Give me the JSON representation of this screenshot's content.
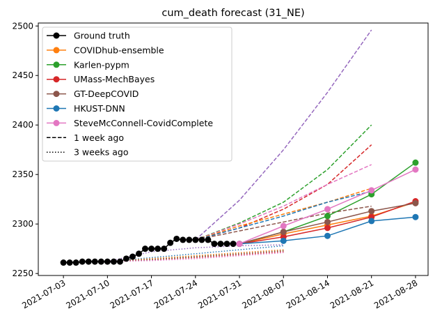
{
  "chart_data": {
    "type": "line",
    "title": "cum_death forecast (31_NE)",
    "xlabel": "",
    "ylabel": "",
    "xlim": [
      "2021-06-29",
      "2021-08-30"
    ],
    "ylim": [
      2248,
      2503
    ],
    "x_ticks": [
      "2021-07-03",
      "2021-07-10",
      "2021-07-17",
      "2021-07-24",
      "2021-07-31",
      "2021-08-07",
      "2021-08-14",
      "2021-08-21",
      "2021-08-28"
    ],
    "y_ticks": [
      2250,
      2300,
      2350,
      2400,
      2450,
      2500
    ],
    "grid": false,
    "legend_position": "top-left",
    "legend": [
      {
        "label": "Ground truth",
        "color": "#000000",
        "style": "solid-marker"
      },
      {
        "label": "COVIDhub-ensemble",
        "color": "#ff7f0e",
        "style": "solid-marker"
      },
      {
        "label": "Karlen-pypm",
        "color": "#2ca02c",
        "style": "solid-marker"
      },
      {
        "label": "UMass-MechBayes",
        "color": "#d62728",
        "style": "solid-marker"
      },
      {
        "label": "GT-DeepCOVID",
        "color": "#8c564b",
        "style": "solid-marker"
      },
      {
        "label": "HKUST-DNN",
        "color": "#1f77b4",
        "style": "solid-marker"
      },
      {
        "label": "SteveMcConnell-CovidComplete",
        "color": "#e377c2",
        "style": "solid-marker"
      },
      {
        "label": "1 week ago",
        "color": "#000000",
        "style": "dashed"
      },
      {
        "label": "3 weeks ago",
        "color": "#000000",
        "style": "dotted"
      }
    ],
    "ground_truth": {
      "name": "Ground truth",
      "color": "#000000",
      "x": [
        "2021-07-03",
        "2021-07-04",
        "2021-07-05",
        "2021-07-06",
        "2021-07-07",
        "2021-07-08",
        "2021-07-09",
        "2021-07-10",
        "2021-07-11",
        "2021-07-12",
        "2021-07-13",
        "2021-07-14",
        "2021-07-15",
        "2021-07-16",
        "2021-07-17",
        "2021-07-18",
        "2021-07-19",
        "2021-07-20",
        "2021-07-21",
        "2021-07-22",
        "2021-07-23",
        "2021-07-24",
        "2021-07-25",
        "2021-07-26",
        "2021-07-27",
        "2021-07-28",
        "2021-07-29",
        "2021-07-30"
      ],
      "y": [
        2261,
        2261,
        2261,
        2262,
        2262,
        2262,
        2262,
        2262,
        2262,
        2262,
        2265,
        2267,
        2270,
        2275,
        2275,
        2275,
        2275,
        2281,
        2285,
        2284,
        2284,
        2284,
        2284,
        2284,
        2280,
        2280,
        2280,
        2280
      ]
    },
    "series": [
      {
        "name": "COVIDhub-ensemble",
        "color": "#ff7f0e",
        "x": [
          "2021-07-31",
          "2021-08-07",
          "2021-08-14",
          "2021-08-21",
          "2021-08-28"
        ],
        "y": [
          2280,
          2290,
          2299,
          2308,
          2322
        ]
      },
      {
        "name": "Karlen-pypm",
        "color": "#2ca02c",
        "x": [
          "2021-07-31",
          "2021-08-07",
          "2021-08-14",
          "2021-08-21",
          "2021-08-28"
        ],
        "y": [
          2280,
          2292,
          2308,
          2330,
          2362
        ]
      },
      {
        "name": "UMass-MechBayes",
        "color": "#d62728",
        "x": [
          "2021-07-31",
          "2021-08-07",
          "2021-08-14",
          "2021-08-21",
          "2021-08-28"
        ],
        "y": [
          2280,
          2287,
          2296,
          2307,
          2323
        ]
      },
      {
        "name": "GT-DeepCOVID",
        "color": "#8c564b",
        "x": [
          "2021-07-31",
          "2021-08-07",
          "2021-08-14",
          "2021-08-21",
          "2021-08-28"
        ],
        "y": [
          2280,
          2292,
          2302,
          2313,
          2321
        ]
      },
      {
        "name": "HKUST-DNN",
        "color": "#1f77b4",
        "x": [
          "2021-07-31",
          "2021-08-07",
          "2021-08-14",
          "2021-08-21",
          "2021-08-28"
        ],
        "y": [
          2280,
          2283,
          2288,
          2303,
          2307
        ]
      },
      {
        "name": "SteveMcConnell-CovidComplete",
        "color": "#e377c2",
        "x": [
          "2021-07-31",
          "2021-08-07",
          "2021-08-14",
          "2021-08-21",
          "2021-08-28"
        ],
        "y": [
          2280,
          2298,
          2315,
          2334,
          2355
        ]
      }
    ],
    "one_week_ago": [
      {
        "color": "#9467bd",
        "x": [
          "2021-07-24",
          "2021-07-31",
          "2021-08-07",
          "2021-08-14",
          "2021-08-21"
        ],
        "y": [
          2284,
          2324,
          2375,
          2433,
          2496
        ]
      },
      {
        "color": "#2ca02c",
        "x": [
          "2021-07-24",
          "2021-07-31",
          "2021-08-07",
          "2021-08-14",
          "2021-08-21"
        ],
        "y": [
          2284,
          2301,
          2322,
          2355,
          2400
        ]
      },
      {
        "color": "#d62728",
        "x": [
          "2021-07-24",
          "2021-07-31",
          "2021-08-07",
          "2021-08-14",
          "2021-08-21"
        ],
        "y": [
          2284,
          2296,
          2315,
          2340,
          2380
        ]
      },
      {
        "color": "#e377c2",
        "x": [
          "2021-07-24",
          "2021-07-31",
          "2021-08-07",
          "2021-08-14",
          "2021-08-21"
        ],
        "y": [
          2284,
          2300,
          2318,
          2340,
          2360
        ]
      },
      {
        "color": "#ff7f0e",
        "x": [
          "2021-07-24",
          "2021-07-31",
          "2021-08-07",
          "2021-08-14",
          "2021-08-21"
        ],
        "y": [
          2284,
          2298,
          2310,
          2322,
          2336
        ]
      },
      {
        "color": "#1f77b4",
        "x": [
          "2021-07-24",
          "2021-07-31",
          "2021-08-07",
          "2021-08-14",
          "2021-08-21"
        ],
        "y": [
          2284,
          2296,
          2308,
          2322,
          2333
        ]
      },
      {
        "color": "#8c564b",
        "x": [
          "2021-07-24",
          "2021-07-31",
          "2021-08-07",
          "2021-08-14",
          "2021-08-21"
        ],
        "y": [
          2284,
          2293,
          2302,
          2311,
          2318
        ]
      }
    ],
    "three_weeks_ago": [
      {
        "color": "#1f77b4",
        "x": [
          "2021-07-10",
          "2021-07-17",
          "2021-07-24",
          "2021-07-31",
          "2021-08-07"
        ],
        "y": [
          2262,
          2266,
          2270,
          2274,
          2278
        ]
      },
      {
        "color": "#9467bd",
        "x": [
          "2021-07-10",
          "2021-07-17",
          "2021-07-24",
          "2021-07-31",
          "2021-08-07"
        ],
        "y": [
          2262,
          2272,
          2276,
          2278,
          2279
        ]
      },
      {
        "color": "#ff7f0e",
        "x": [
          "2021-07-10",
          "2021-07-17",
          "2021-07-24",
          "2021-07-31",
          "2021-08-07"
        ],
        "y": [
          2262,
          2265,
          2268,
          2271,
          2274
        ]
      },
      {
        "color": "#2ca02c",
        "x": [
          "2021-07-10",
          "2021-07-17",
          "2021-07-24",
          "2021-07-31",
          "2021-08-07"
        ],
        "y": [
          2262,
          2264,
          2267,
          2270,
          2273
        ]
      },
      {
        "color": "#d62728",
        "x": [
          "2021-07-10",
          "2021-07-17",
          "2021-07-24",
          "2021-07-31",
          "2021-08-07"
        ],
        "y": [
          2262,
          2264,
          2266,
          2269,
          2272
        ]
      },
      {
        "color": "#8c564b",
        "x": [
          "2021-07-10",
          "2021-07-17",
          "2021-07-24",
          "2021-07-31",
          "2021-08-07"
        ],
        "y": [
          2262,
          2264,
          2267,
          2270,
          2273
        ]
      },
      {
        "color": "#e377c2",
        "x": [
          "2021-07-10",
          "2021-07-17",
          "2021-07-24",
          "2021-07-31",
          "2021-08-07"
        ],
        "y": [
          2262,
          2263,
          2265,
          2268,
          2271
        ]
      }
    ]
  }
}
